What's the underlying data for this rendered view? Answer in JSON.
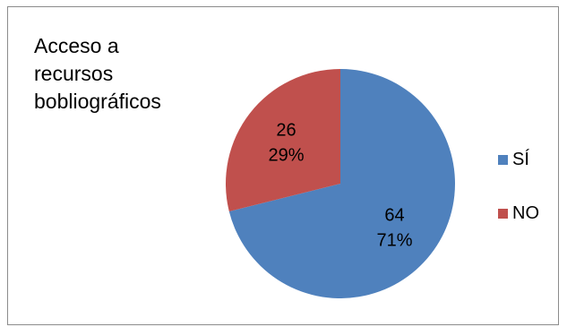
{
  "chart_data": {
    "type": "pie",
    "title_lines": [
      "Acceso a",
      "recursos",
      "bobliográficos"
    ],
    "categories": [
      "SÍ",
      "NO"
    ],
    "values": [
      64,
      26
    ],
    "percent_labels": [
      "71%",
      "29%"
    ],
    "colors": [
      "#4f81bd",
      "#c0504d"
    ],
    "legend_position": "right",
    "start_angle_deg": 0,
    "direction": "clockwise"
  }
}
